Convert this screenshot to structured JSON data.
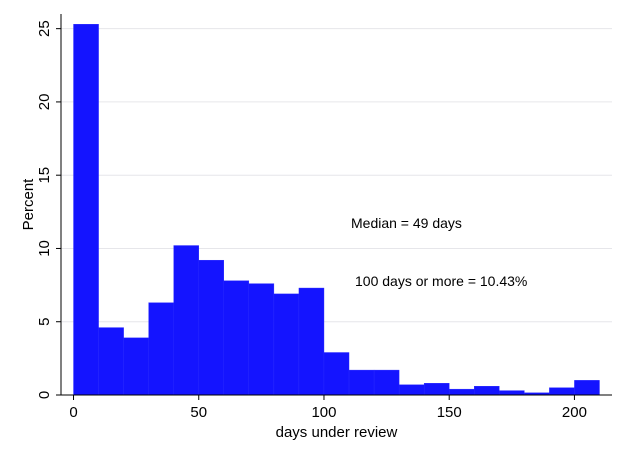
{
  "chart_data": {
    "type": "bar",
    "subtype": "histogram",
    "xlabel": "days under review",
    "ylabel": "Percent",
    "xlim": [
      -5,
      215
    ],
    "ylim": [
      0,
      26
    ],
    "x_ticks": [
      0,
      50,
      100,
      150,
      200
    ],
    "y_ticks": [
      0,
      5,
      10,
      15,
      20,
      25
    ],
    "grid": "horizontal",
    "bar_color": "#1414ff",
    "bin_width": 10,
    "bins": [
      {
        "start": 0,
        "end": 10,
        "value": 25.3
      },
      {
        "start": 10,
        "end": 20,
        "value": 4.6
      },
      {
        "start": 20,
        "end": 30,
        "value": 3.9
      },
      {
        "start": 30,
        "end": 40,
        "value": 6.3
      },
      {
        "start": 40,
        "end": 50,
        "value": 10.2
      },
      {
        "start": 50,
        "end": 60,
        "value": 9.2
      },
      {
        "start": 60,
        "end": 70,
        "value": 7.8
      },
      {
        "start": 70,
        "end": 80,
        "value": 7.6
      },
      {
        "start": 80,
        "end": 90,
        "value": 6.9
      },
      {
        "start": 90,
        "end": 100,
        "value": 7.3
      },
      {
        "start": 100,
        "end": 110,
        "value": 2.9
      },
      {
        "start": 110,
        "end": 120,
        "value": 1.7
      },
      {
        "start": 120,
        "end": 130,
        "value": 1.7
      },
      {
        "start": 130,
        "end": 140,
        "value": 0.7
      },
      {
        "start": 140,
        "end": 150,
        "value": 0.8
      },
      {
        "start": 150,
        "end": 160,
        "value": 0.4
      },
      {
        "start": 160,
        "end": 170,
        "value": 0.6
      },
      {
        "start": 170,
        "end": 180,
        "value": 0.3
      },
      {
        "start": 180,
        "end": 190,
        "value": 0.15
      },
      {
        "start": 190,
        "end": 200,
        "value": 0.5
      },
      {
        "start": 200,
        "end": 210,
        "value": 1.0
      }
    ],
    "annotations": [
      "Median = 49 days",
      "100 days or more = 10.43%"
    ]
  }
}
